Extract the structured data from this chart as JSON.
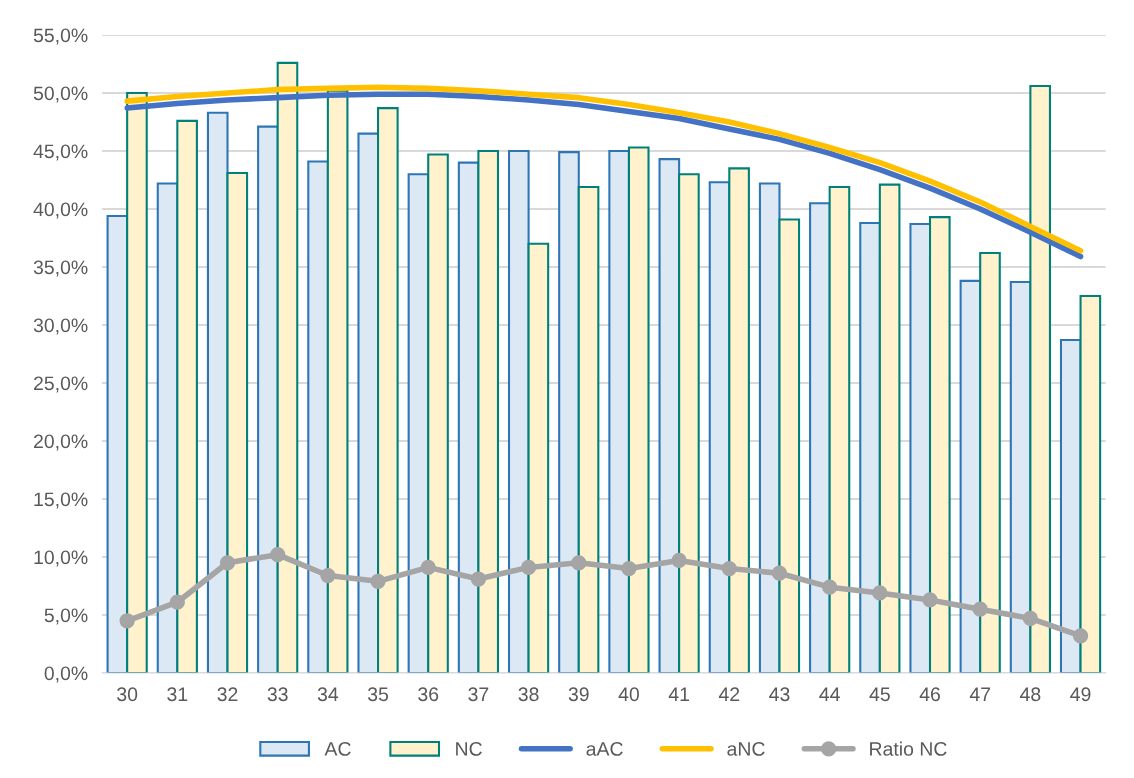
{
  "chart_data": {
    "type": "bar",
    "categories": [
      "30",
      "31",
      "32",
      "33",
      "34",
      "35",
      "36",
      "37",
      "38",
      "39",
      "40",
      "41",
      "42",
      "43",
      "44",
      "45",
      "46",
      "47",
      "48",
      "49"
    ],
    "series": [
      {
        "name": "AC",
        "color": "#dce9f5",
        "values": [
          39.4,
          42.2,
          48.3,
          47.1,
          44.1,
          46.5,
          43.0,
          44.0,
          45.0,
          44.9,
          45.0,
          44.3,
          42.3,
          42.2,
          40.5,
          38.8,
          38.7,
          33.8,
          33.7,
          28.7
        ]
      },
      {
        "name": "NC",
        "color": "#fff2cc",
        "values": [
          50.0,
          47.6,
          43.1,
          52.6,
          50.2,
          48.7,
          44.7,
          45.0,
          37.0,
          41.9,
          45.3,
          43.0,
          43.5,
          39.1,
          41.9,
          42.1,
          39.3,
          36.2,
          50.6,
          32.5
        ]
      },
      {
        "name": "aAC",
        "type": "line",
        "color": "#4472c4",
        "marker": "none",
        "values": [
          48.7,
          49.1,
          49.4,
          49.6,
          49.8,
          49.9,
          49.9,
          49.7,
          49.4,
          49.0,
          48.4,
          47.8,
          46.9,
          46.0,
          44.8,
          43.4,
          41.8,
          40.0,
          38.0,
          35.9
        ]
      },
      {
        "name": "aNC",
        "type": "line",
        "color": "#ffc000",
        "marker": "none",
        "values": [
          49.3,
          49.7,
          50.0,
          50.3,
          50.4,
          50.5,
          50.4,
          50.2,
          49.9,
          49.6,
          49.0,
          48.3,
          47.5,
          46.5,
          45.3,
          44.0,
          42.4,
          40.6,
          38.5,
          36.4
        ]
      },
      {
        "name": "Ratio NC",
        "type": "line",
        "color": "#a5a5a5",
        "marker": "circle",
        "values": [
          4.5,
          6.1,
          9.5,
          10.2,
          8.4,
          7.9,
          9.1,
          8.1,
          9.1,
          9.5,
          9.0,
          9.7,
          9.0,
          8.6,
          7.4,
          6.9,
          6.3,
          5.5,
          4.7,
          3.2
        ]
      }
    ],
    "ylim": [
      0,
      55
    ],
    "yticks": [
      {
        "value": 0,
        "label": "0,0%"
      },
      {
        "value": 5,
        "label": "5,0%"
      },
      {
        "value": 10,
        "label": "10,0%"
      },
      {
        "value": 15,
        "label": "15,0%"
      },
      {
        "value": 20,
        "label": "20,0%"
      },
      {
        "value": 25,
        "label": "25,0%"
      },
      {
        "value": 30,
        "label": "30,0%"
      },
      {
        "value": 35,
        "label": "35,0%"
      },
      {
        "value": 40,
        "label": "40,0%"
      },
      {
        "value": 45,
        "label": "45,0%"
      },
      {
        "value": 50,
        "label": "50,0%"
      },
      {
        "value": 55,
        "label": "55,0%"
      }
    ],
    "grid": "y",
    "legend": "bottom"
  }
}
